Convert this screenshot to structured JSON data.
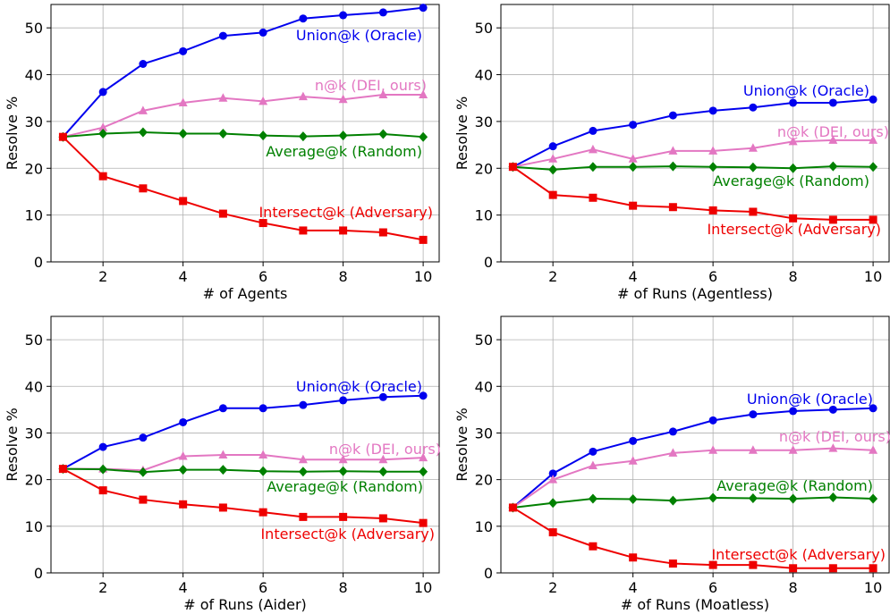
{
  "chart_data": [
    {
      "type": "line",
      "xlabel": "# of Agents",
      "ylabel": "Resolve %",
      "xlim": [
        0.7,
        10.4
      ],
      "ylim": [
        0,
        55
      ],
      "xticks": [
        2,
        4,
        6,
        8,
        10
      ],
      "yticks": [
        0,
        10,
        20,
        30,
        40,
        50
      ],
      "grid": true,
      "x": [
        1,
        2,
        3,
        4,
        5,
        6,
        7,
        8,
        9,
        10
      ],
      "series": [
        {
          "name": "Union@k (Oracle)",
          "color": "#0000ee",
          "marker": "circle",
          "values": [
            26.7,
            36.3,
            42.3,
            45.0,
            48.3,
            49.0,
            52.0,
            52.7,
            53.3,
            54.3
          ]
        },
        {
          "name": "n@k (DEI, ours)",
          "color": "#e377c2",
          "marker": "triangle",
          "values": [
            26.7,
            28.7,
            32.3,
            34.0,
            35.0,
            34.3,
            35.3,
            34.7,
            35.7,
            35.7
          ]
        },
        {
          "name": "Average@k (Random)",
          "color": "#008000",
          "marker": "diamond",
          "values": [
            26.7,
            27.4,
            27.7,
            27.4,
            27.4,
            27.0,
            26.8,
            27.0,
            27.3,
            26.7
          ]
        },
        {
          "name": "Intersect@k (Adversary)",
          "color": "#ee0000",
          "marker": "square",
          "values": [
            26.7,
            18.3,
            15.7,
            13.0,
            10.3,
            8.3,
            6.7,
            6.7,
            6.3,
            4.7
          ]
        }
      ]
    },
    {
      "type": "line",
      "xlabel": "# of Runs (Agentless)",
      "ylabel": "Resolve %",
      "xlim": [
        0.7,
        10.4
      ],
      "ylim": [
        0,
        55
      ],
      "xticks": [
        2,
        4,
        6,
        8,
        10
      ],
      "yticks": [
        0,
        10,
        20,
        30,
        40,
        50
      ],
      "grid": true,
      "x": [
        1,
        2,
        3,
        4,
        5,
        6,
        7,
        8,
        9,
        10
      ],
      "series": [
        {
          "name": "Union@k (Oracle)",
          "color": "#0000ee",
          "marker": "circle",
          "values": [
            20.3,
            24.7,
            28.0,
            29.3,
            31.3,
            32.3,
            33.0,
            34.0,
            34.0,
            34.7
          ]
        },
        {
          "name": "n@k (DEI, ours)",
          "color": "#e377c2",
          "marker": "triangle",
          "values": [
            20.3,
            22.0,
            24.0,
            22.0,
            23.7,
            23.7,
            24.3,
            25.7,
            26.0,
            26.0
          ]
        },
        {
          "name": "Average@k (Random)",
          "color": "#008000",
          "marker": "diamond",
          "values": [
            20.3,
            19.7,
            20.3,
            20.3,
            20.4,
            20.3,
            20.2,
            20.0,
            20.4,
            20.3
          ]
        },
        {
          "name": "Intersect@k (Adversary)",
          "color": "#ee0000",
          "marker": "square",
          "values": [
            20.3,
            14.3,
            13.7,
            12.0,
            11.7,
            11.0,
            10.7,
            9.3,
            9.0,
            9.0
          ]
        }
      ]
    },
    {
      "type": "line",
      "xlabel": "# of Runs (Aider)",
      "ylabel": "Resolve %",
      "xlim": [
        0.7,
        10.4
      ],
      "ylim": [
        0,
        55
      ],
      "xticks": [
        2,
        4,
        6,
        8,
        10
      ],
      "yticks": [
        0,
        10,
        20,
        30,
        40,
        50
      ],
      "grid": true,
      "x": [
        1,
        2,
        3,
        4,
        5,
        6,
        7,
        8,
        9,
        10
      ],
      "series": [
        {
          "name": "Union@k (Oracle)",
          "color": "#0000ee",
          "marker": "circle",
          "values": [
            22.3,
            27.0,
            29.0,
            32.3,
            35.3,
            35.3,
            36.0,
            37.0,
            37.7,
            38.0
          ]
        },
        {
          "name": "n@k (DEI, ours)",
          "color": "#e377c2",
          "marker": "triangle",
          "values": [
            22.3,
            22.3,
            22.0,
            25.0,
            25.3,
            25.3,
            24.3,
            24.3,
            24.3,
            24.7
          ]
        },
        {
          "name": "Average@k (Random)",
          "color": "#008000",
          "marker": "diamond",
          "values": [
            22.3,
            22.2,
            21.6,
            22.1,
            22.1,
            21.8,
            21.7,
            21.8,
            21.7,
            21.7
          ]
        },
        {
          "name": "Intersect@k (Adversary)",
          "color": "#ee0000",
          "marker": "square",
          "values": [
            22.3,
            17.7,
            15.7,
            14.7,
            14.0,
            13.0,
            12.0,
            12.0,
            11.7,
            10.7
          ]
        }
      ]
    },
    {
      "type": "line",
      "xlabel": "# of Runs (Moatless)",
      "ylabel": "Resolve %",
      "xlim": [
        0.7,
        10.4
      ],
      "ylim": [
        0,
        55
      ],
      "xticks": [
        2,
        4,
        6,
        8,
        10
      ],
      "yticks": [
        0,
        10,
        20,
        30,
        40,
        50
      ],
      "grid": true,
      "x": [
        1,
        2,
        3,
        4,
        5,
        6,
        7,
        8,
        9,
        10
      ],
      "series": [
        {
          "name": "Union@k (Oracle)",
          "color": "#0000ee",
          "marker": "circle",
          "values": [
            14.0,
            21.3,
            26.0,
            28.3,
            30.3,
            32.7,
            34.0,
            34.7,
            35.0,
            35.3
          ]
        },
        {
          "name": "n@k (DEI, ours)",
          "color": "#e377c2",
          "marker": "triangle",
          "values": [
            14.0,
            20.0,
            23.0,
            24.0,
            25.7,
            26.3,
            26.3,
            26.3,
            26.7,
            26.3
          ]
        },
        {
          "name": "Average@k (Random)",
          "color": "#008000",
          "marker": "diamond",
          "values": [
            14.0,
            15.0,
            15.9,
            15.8,
            15.5,
            16.1,
            16.0,
            15.9,
            16.2,
            15.9
          ]
        },
        {
          "name": "Intersect@k (Adversary)",
          "color": "#ee0000",
          "marker": "square",
          "values": [
            14.0,
            8.7,
            5.7,
            3.3,
            2.0,
            1.7,
            1.7,
            1.0,
            1.0,
            1.0
          ]
        }
      ]
    }
  ]
}
